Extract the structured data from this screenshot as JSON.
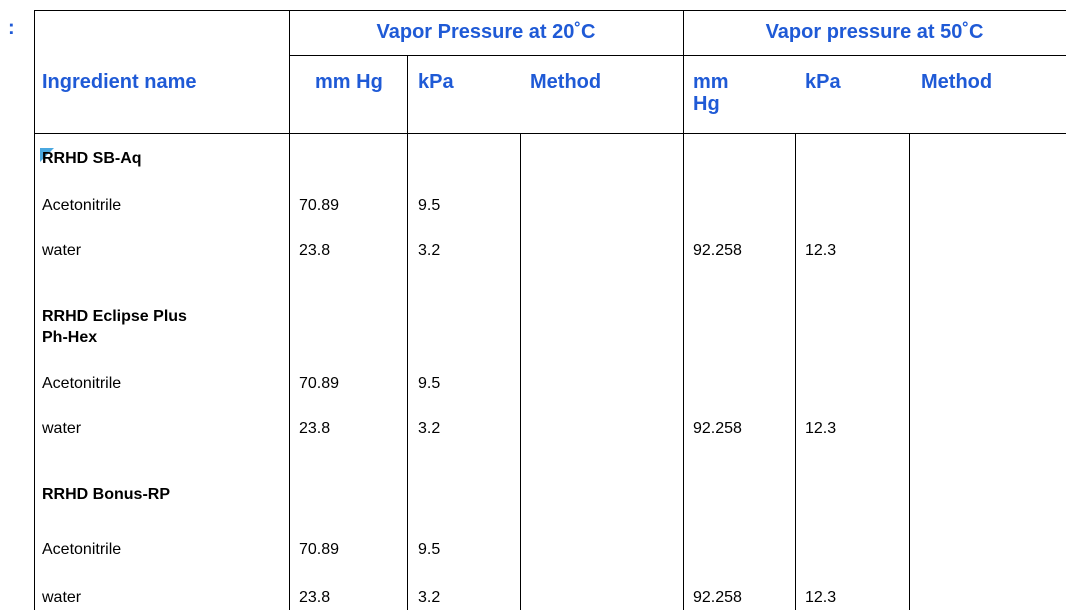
{
  "header": {
    "marker": ":"
  },
  "table": {
    "group_headers": [
      "Vapor Pressure at 20˚C",
      "Vapor pressure at 50˚C"
    ],
    "columns": [
      "Ingredient name",
      "mm Hg",
      "kPa",
      "Method",
      "mm Hg",
      "kPa",
      "Method"
    ],
    "rows": [
      [
        "RRHD SB-Aq"
      ],
      [
        "Acetonitrile",
        70.89,
        9.5,
        null,
        null,
        null,
        null
      ],
      [
        "water",
        23.8,
        3.2,
        null,
        92.258,
        12.3,
        null
      ],
      [
        "RRHD Eclipse Plus Ph-Hex"
      ],
      [
        "Acetonitrile",
        70.89,
        9.5,
        null,
        null,
        null,
        null
      ],
      [
        "water",
        23.8,
        3.2,
        null,
        92.258,
        12.3,
        null
      ],
      [
        "RRHD Bonus-RP"
      ],
      [
        "Acetonitrile",
        70.89,
        9.5,
        null,
        null,
        null,
        null
      ],
      [
        "water",
        23.8,
        3.2,
        null,
        92.258,
        12.3,
        null
      ]
    ]
  }
}
